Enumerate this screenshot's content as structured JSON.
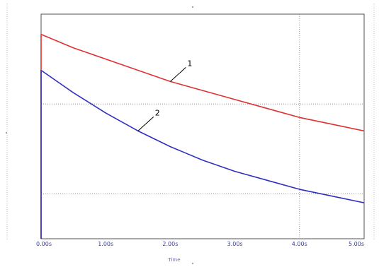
{
  "chart_data": {
    "type": "line",
    "title": "",
    "xlabel": "Time",
    "ylabel": "",
    "x_ticks": [
      {
        "value": 0,
        "label": "0.00s"
      },
      {
        "value": 1,
        "label": "1.00s"
      },
      {
        "value": 2,
        "label": "2.00s"
      },
      {
        "value": 3,
        "label": "3.00s"
      },
      {
        "value": 4,
        "label": "4.00s"
      },
      {
        "value": 5,
        "label": "5.00s"
      }
    ],
    "xlim": [
      0,
      5
    ],
    "ylim": [
      0,
      1
    ],
    "grid": "dotted",
    "series": [
      {
        "name": "1",
        "color": "#e03030",
        "x": [
          0,
          0.5,
          1,
          1.5,
          2,
          2.5,
          3,
          3.5,
          4,
          4.5,
          5
        ],
        "y": [
          0.91,
          0.85,
          0.8,
          0.75,
          0.7,
          0.66,
          0.62,
          0.58,
          0.54,
          0.51,
          0.48
        ]
      },
      {
        "name": "2",
        "color": "#3030c0",
        "x": [
          0,
          0.5,
          1,
          1.5,
          2,
          2.5,
          3,
          3.5,
          4,
          4.5,
          5
        ],
        "y": [
          0.75,
          0.65,
          0.56,
          0.48,
          0.41,
          0.35,
          0.3,
          0.26,
          0.22,
          0.19,
          0.16
        ]
      }
    ],
    "annotations": [
      {
        "text": "1",
        "series": "1"
      },
      {
        "text": "2",
        "series": "2"
      }
    ]
  }
}
